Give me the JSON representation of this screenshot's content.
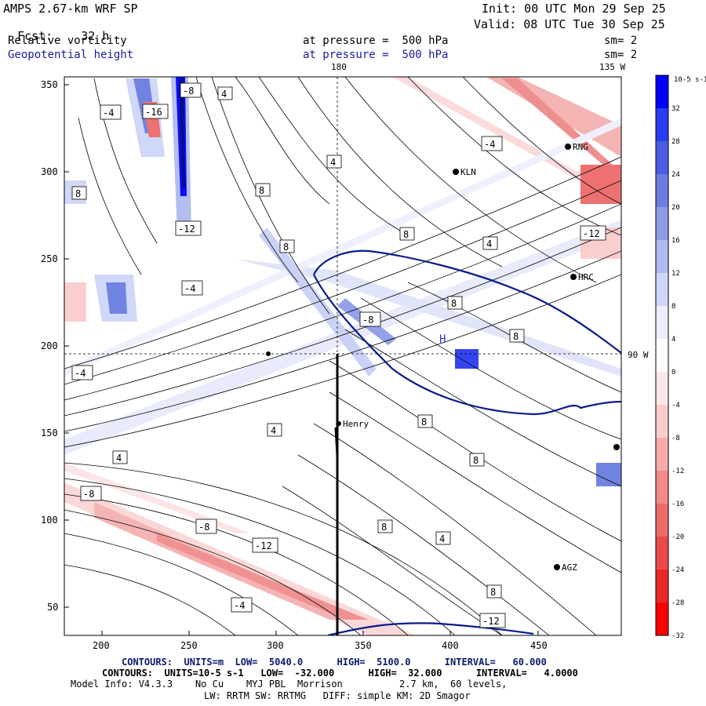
{
  "header": {
    "model": "AMPS 2.67-km WRF SP",
    "init": "Init: 00 UTC Mon 29 Sep 25",
    "fcst_label": "Fcst:",
    "fcst_value": "32 h",
    "valid": "Valid: 08 UTC Tue 30 Sep 25",
    "field1": "Relative vorticity",
    "field1_level": "at pressure =  500 hPa",
    "field1_sm": "sm= 2",
    "field2": "Geopotential height",
    "field2_level": "at pressure =  500 hPa",
    "field2_sm": "sm= 2"
  },
  "map": {
    "lon_label_top": "180",
    "lon_label_right_top": "135 W",
    "lon_label_right_mid": "90 W",
    "x_ticks": [
      "200",
      "250",
      "300",
      "350",
      "400",
      "450"
    ],
    "y_ticks": [
      "350",
      "300",
      "250",
      "200",
      "150",
      "100",
      "50"
    ],
    "stations": [
      "Henry",
      "KLN",
      "RNG",
      "HRC",
      "AGZ",
      "H"
    ],
    "contour_labels_positive": [
      "4",
      "4",
      "4",
      "4",
      "4",
      "4",
      "8",
      "8",
      "8",
      "8",
      "8",
      "8",
      "8",
      "8",
      "8",
      "8"
    ],
    "contour_labels_negative": [
      "-4",
      "-4",
      "-4",
      "-8",
      "-8",
      "-8",
      "-12",
      "-12",
      "-12",
      "-12",
      "-16",
      "-4",
      "-4",
      "-8"
    ]
  },
  "colorbar": {
    "units": "10-5 s-1",
    "labels": [
      "32",
      "28",
      "24",
      "20",
      "16",
      "12",
      "8",
      "4",
      "0",
      "-4",
      "-8",
      "-12",
      "-16",
      "-20",
      "-24",
      "-28",
      "-32"
    ],
    "colors": [
      "#0000ff",
      "#2a3cf0",
      "#4a5de4",
      "#6a7de0",
      "#8c9ce6",
      "#aebbf0",
      "#cdd6f8",
      "#eaeefd",
      "#ffffff",
      "#fde8e8",
      "#fbcccc",
      "#f6aaaa",
      "#f28a8a",
      "#ee6a6a",
      "#ea4a4a",
      "#e82828",
      "#ff0000"
    ]
  },
  "footer": {
    "line1": "CONTOURS:  UNITS=m  LOW=  5040.0      HIGH=  5100.0      INTERVAL=   60.000",
    "line2": "CONTOURS:  UNITS=10-5 s-1   LOW=  -32.000      HIGH=  32.000      INTERVAL=   4.0000",
    "line3": "Model Info: V4.3.3    No Cu    MYJ PBL  Morrison          2.7 km,  60 levels,",
    "line4": "LW: RRTM SW: RRTMG   DIFF: simple KM: 2D Smagor"
  }
}
